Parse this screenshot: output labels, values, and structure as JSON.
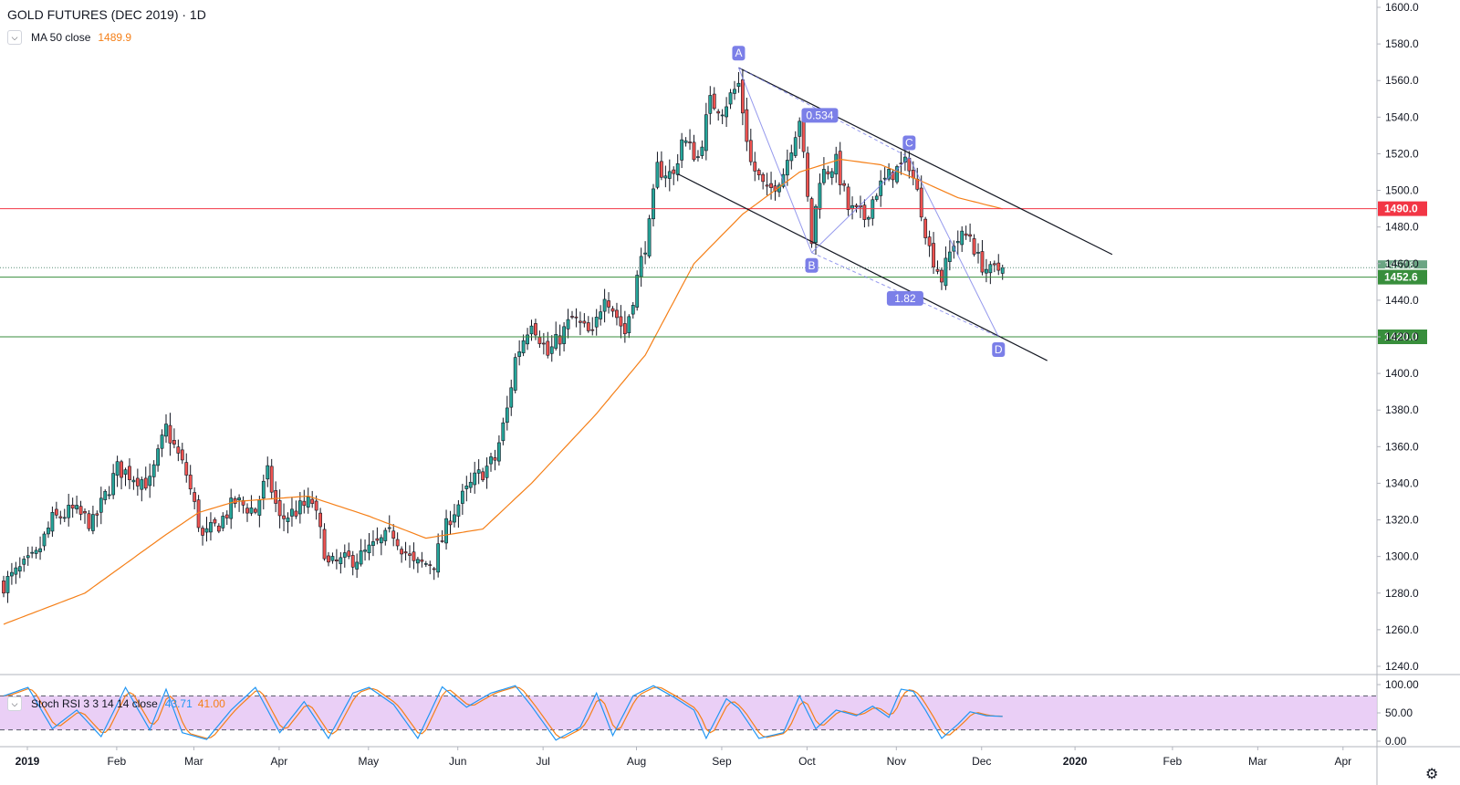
{
  "title": "GOLD FUTURES (DEC 2019) · 1D",
  "ma_legend": {
    "toggle_icon": "chevron-down-icon",
    "label": "MA 50 close",
    "value": "1489.9",
    "color": "#f57f17"
  },
  "rsi_legend": {
    "toggle_icon": "chevron-down-icon",
    "label": "Stoch RSI 3 3 14 14 close",
    "k_value": "43.71",
    "d_value": "41.00",
    "k_color": "#2196f3",
    "d_color": "#f57f17"
  },
  "settings_icon": "gear-icon",
  "price_axis": {
    "ticks": [
      "1600.0",
      "1580.0",
      "1560.0",
      "1540.0",
      "1520.0",
      "1500.0",
      "1480.0",
      "1460.0",
      "1440.0",
      "1420.0",
      "1400.0",
      "1380.0",
      "1360.0",
      "1340.0",
      "1320.0",
      "1300.0",
      "1280.0",
      "1260.0",
      "1240.0"
    ],
    "tick_values": [
      1600,
      1580,
      1560,
      1540,
      1520,
      1500,
      1480,
      1460,
      1440,
      1420,
      1400,
      1380,
      1360,
      1340,
      1320,
      1300,
      1280,
      1260,
      1240
    ],
    "range": [
      1236,
      1604
    ]
  },
  "rsi_axis": {
    "ticks": [
      "100.00",
      "50.00",
      "0.00"
    ],
    "tick_values": [
      100,
      50,
      0
    ],
    "band": [
      20,
      80
    ]
  },
  "time_axis": {
    "labels": [
      "2019",
      "Feb",
      "Mar",
      "Apr",
      "May",
      "Jun",
      "Jul",
      "Aug",
      "Sep",
      "Oct",
      "Nov",
      "Dec",
      "2020",
      "Feb",
      "Mar",
      "Apr"
    ],
    "bold": [
      true,
      false,
      false,
      false,
      false,
      false,
      false,
      false,
      false,
      false,
      false,
      false,
      true,
      false,
      false,
      false
    ],
    "bar_index": [
      0,
      22,
      41,
      62,
      84,
      106,
      127,
      150,
      171,
      192,
      214,
      235,
      258,
      282,
      303,
      324
    ]
  },
  "levels": [
    {
      "value": 1490.0,
      "label": "1490.0",
      "color": "#f23645"
    },
    {
      "value": 1452.6,
      "label": "1452.6",
      "color": "#388e3c"
    },
    {
      "value": 1420.0,
      "label": "1420.0",
      "color": "#388e3c"
    }
  ],
  "last_price": {
    "value": 1457.8,
    "label": "1457.8",
    "color": "#6ba583"
  },
  "pattern": {
    "color": "#7b7fe8",
    "points": [
      {
        "label": "A",
        "bar": 181,
        "price": 1567
      },
      {
        "label": "B",
        "bar": 199,
        "price": 1466
      },
      {
        "label": "C",
        "bar": 223,
        "price": 1518
      },
      {
        "label": "D",
        "bar": 245,
        "price": 1420
      }
    ],
    "ratios": [
      {
        "label": "0.534",
        "bar": 201,
        "price": 1541
      },
      {
        "label": "1.82",
        "bar": 222,
        "price": 1441
      }
    ]
  },
  "channel": [
    {
      "start": {
        "bar": 181,
        "price": 1567
      },
      "end": {
        "bar": 273,
        "price": 1465
      }
    },
    {
      "start": {
        "bar": 166,
        "price": 1509
      },
      "end": {
        "bar": 257,
        "price": 1407
      }
    }
  ],
  "chart_data": {
    "type": "candlestick",
    "title": "GOLD FUTURES (DEC 2019) · 1D",
    "colors": {
      "up": "#26a69a",
      "down": "#ef5350",
      "ma": "#f57f17"
    },
    "anchors": [
      {
        "bar": 0,
        "price": 1285
      },
      {
        "bar": 8,
        "price": 1300
      },
      {
        "bar": 12,
        "price": 1320
      },
      {
        "bar": 17,
        "price": 1325
      },
      {
        "bar": 22,
        "price": 1318
      },
      {
        "bar": 28,
        "price": 1348
      },
      {
        "bar": 36,
        "price": 1340
      },
      {
        "bar": 40,
        "price": 1370
      },
      {
        "bar": 45,
        "price": 1345
      },
      {
        "bar": 49,
        "price": 1310
      },
      {
        "bar": 53,
        "price": 1318
      },
      {
        "bar": 57,
        "price": 1330
      },
      {
        "bar": 62,
        "price": 1325
      },
      {
        "bar": 65,
        "price": 1345
      },
      {
        "bar": 68,
        "price": 1320
      },
      {
        "bar": 76,
        "price": 1330
      },
      {
        "bar": 80,
        "price": 1295
      },
      {
        "bar": 88,
        "price": 1300
      },
      {
        "bar": 96,
        "price": 1313
      },
      {
        "bar": 101,
        "price": 1295
      },
      {
        "bar": 106,
        "price": 1297
      },
      {
        "bar": 110,
        "price": 1322
      },
      {
        "bar": 116,
        "price": 1342
      },
      {
        "bar": 121,
        "price": 1353
      },
      {
        "bar": 124,
        "price": 1380
      },
      {
        "bar": 126,
        "price": 1408
      },
      {
        "bar": 130,
        "price": 1430
      },
      {
        "bar": 134,
        "price": 1410
      },
      {
        "bar": 140,
        "price": 1430
      },
      {
        "bar": 145,
        "price": 1420
      },
      {
        "bar": 148,
        "price": 1445
      },
      {
        "bar": 153,
        "price": 1422
      },
      {
        "bar": 156,
        "price": 1452
      },
      {
        "bar": 159,
        "price": 1480
      },
      {
        "bar": 161,
        "price": 1512
      },
      {
        "bar": 165,
        "price": 1508
      },
      {
        "bar": 167,
        "price": 1528
      },
      {
        "bar": 171,
        "price": 1518
      },
      {
        "bar": 174,
        "price": 1548
      },
      {
        "bar": 177,
        "price": 1545
      },
      {
        "bar": 181,
        "price": 1558
      },
      {
        "bar": 184,
        "price": 1515
      },
      {
        "bar": 188,
        "price": 1498
      },
      {
        "bar": 192,
        "price": 1510
      },
      {
        "bar": 196,
        "price": 1540
      },
      {
        "bar": 199,
        "price": 1472
      },
      {
        "bar": 201,
        "price": 1508
      },
      {
        "bar": 205,
        "price": 1515
      },
      {
        "bar": 208,
        "price": 1490
      },
      {
        "bar": 212,
        "price": 1485
      },
      {
        "bar": 215,
        "price": 1500
      },
      {
        "bar": 219,
        "price": 1510
      },
      {
        "bar": 223,
        "price": 1515
      },
      {
        "bar": 226,
        "price": 1490
      },
      {
        "bar": 228,
        "price": 1468
      },
      {
        "bar": 231,
        "price": 1452
      },
      {
        "bar": 234,
        "price": 1472
      },
      {
        "bar": 238,
        "price": 1476
      },
      {
        "bar": 240,
        "price": 1462
      },
      {
        "bar": 243,
        "price": 1455
      },
      {
        "bar": 246,
        "price": 1457.8
      }
    ],
    "ma50_anchors": [
      {
        "bar": 0,
        "price": 1263
      },
      {
        "bar": 20,
        "price": 1280
      },
      {
        "bar": 40,
        "price": 1312
      },
      {
        "bar": 48,
        "price": 1324
      },
      {
        "bar": 57,
        "price": 1330
      },
      {
        "bar": 75,
        "price": 1333
      },
      {
        "bar": 90,
        "price": 1322
      },
      {
        "bar": 104,
        "price": 1310
      },
      {
        "bar": 118,
        "price": 1315
      },
      {
        "bar": 130,
        "price": 1340
      },
      {
        "bar": 146,
        "price": 1378
      },
      {
        "bar": 158,
        "price": 1410
      },
      {
        "bar": 170,
        "price": 1460
      },
      {
        "bar": 182,
        "price": 1487
      },
      {
        "bar": 196,
        "price": 1510
      },
      {
        "bar": 206,
        "price": 1517
      },
      {
        "bar": 216,
        "price": 1514
      },
      {
        "bar": 226,
        "price": 1505
      },
      {
        "bar": 235,
        "price": 1496
      },
      {
        "bar": 246,
        "price": 1489.9
      }
    ],
    "stoch_rsi_anchors": [
      {
        "bar": 0,
        "k": 80
      },
      {
        "bar": 6,
        "k": 95
      },
      {
        "bar": 12,
        "k": 22
      },
      {
        "bar": 18,
        "k": 55
      },
      {
        "bar": 24,
        "k": 8
      },
      {
        "bar": 30,
        "k": 95
      },
      {
        "bar": 36,
        "k": 20
      },
      {
        "bar": 40,
        "k": 92
      },
      {
        "bar": 44,
        "k": 15
      },
      {
        "bar": 50,
        "k": 3
      },
      {
        "bar": 56,
        "k": 55
      },
      {
        "bar": 62,
        "k": 95
      },
      {
        "bar": 68,
        "k": 15
      },
      {
        "bar": 74,
        "k": 70
      },
      {
        "bar": 80,
        "k": 5
      },
      {
        "bar": 86,
        "k": 85
      },
      {
        "bar": 90,
        "k": 95
      },
      {
        "bar": 96,
        "k": 65
      },
      {
        "bar": 102,
        "k": 5
      },
      {
        "bar": 108,
        "k": 96
      },
      {
        "bar": 114,
        "k": 60
      },
      {
        "bar": 120,
        "k": 85
      },
      {
        "bar": 126,
        "k": 98
      },
      {
        "bar": 130,
        "k": 62
      },
      {
        "bar": 136,
        "k": 2
      },
      {
        "bar": 142,
        "k": 25
      },
      {
        "bar": 146,
        "k": 85
      },
      {
        "bar": 150,
        "k": 10
      },
      {
        "bar": 155,
        "k": 80
      },
      {
        "bar": 160,
        "k": 98
      },
      {
        "bar": 165,
        "k": 78
      },
      {
        "bar": 170,
        "k": 55
      },
      {
        "bar": 173,
        "k": 5
      },
      {
        "bar": 178,
        "k": 75
      },
      {
        "bar": 181,
        "k": 58
      },
      {
        "bar": 186,
        "k": 5
      },
      {
        "bar": 192,
        "k": 15
      },
      {
        "bar": 196,
        "k": 80
      },
      {
        "bar": 200,
        "k": 22
      },
      {
        "bar": 205,
        "k": 55
      },
      {
        "bar": 210,
        "k": 45
      },
      {
        "bar": 214,
        "k": 62
      },
      {
        "bar": 218,
        "k": 42
      },
      {
        "bar": 221,
        "k": 92
      },
      {
        "bar": 224,
        "k": 88
      },
      {
        "bar": 227,
        "k": 55
      },
      {
        "bar": 231,
        "k": 5
      },
      {
        "bar": 235,
        "k": 30
      },
      {
        "bar": 238,
        "k": 52
      },
      {
        "bar": 242,
        "k": 45
      },
      {
        "bar": 246,
        "k": 43.71
      }
    ],
    "k_value": 43.71,
    "d_value": 41.0,
    "bar_count": 247
  }
}
